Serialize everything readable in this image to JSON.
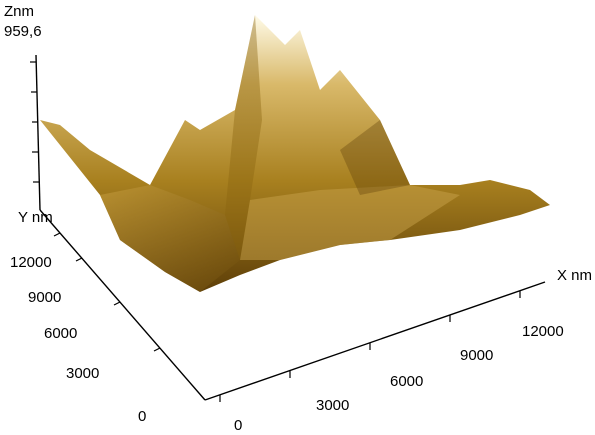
{
  "z_axis": {
    "label": "Znm",
    "max_label": "959,6"
  },
  "y_axis": {
    "label": "Y nm",
    "ticks": [
      "12000",
      "9000",
      "6000",
      "3000",
      "0"
    ]
  },
  "x_axis": {
    "label": "X nm",
    "ticks": [
      "0",
      "3000",
      "6000",
      "9000",
      "12000"
    ]
  }
}
